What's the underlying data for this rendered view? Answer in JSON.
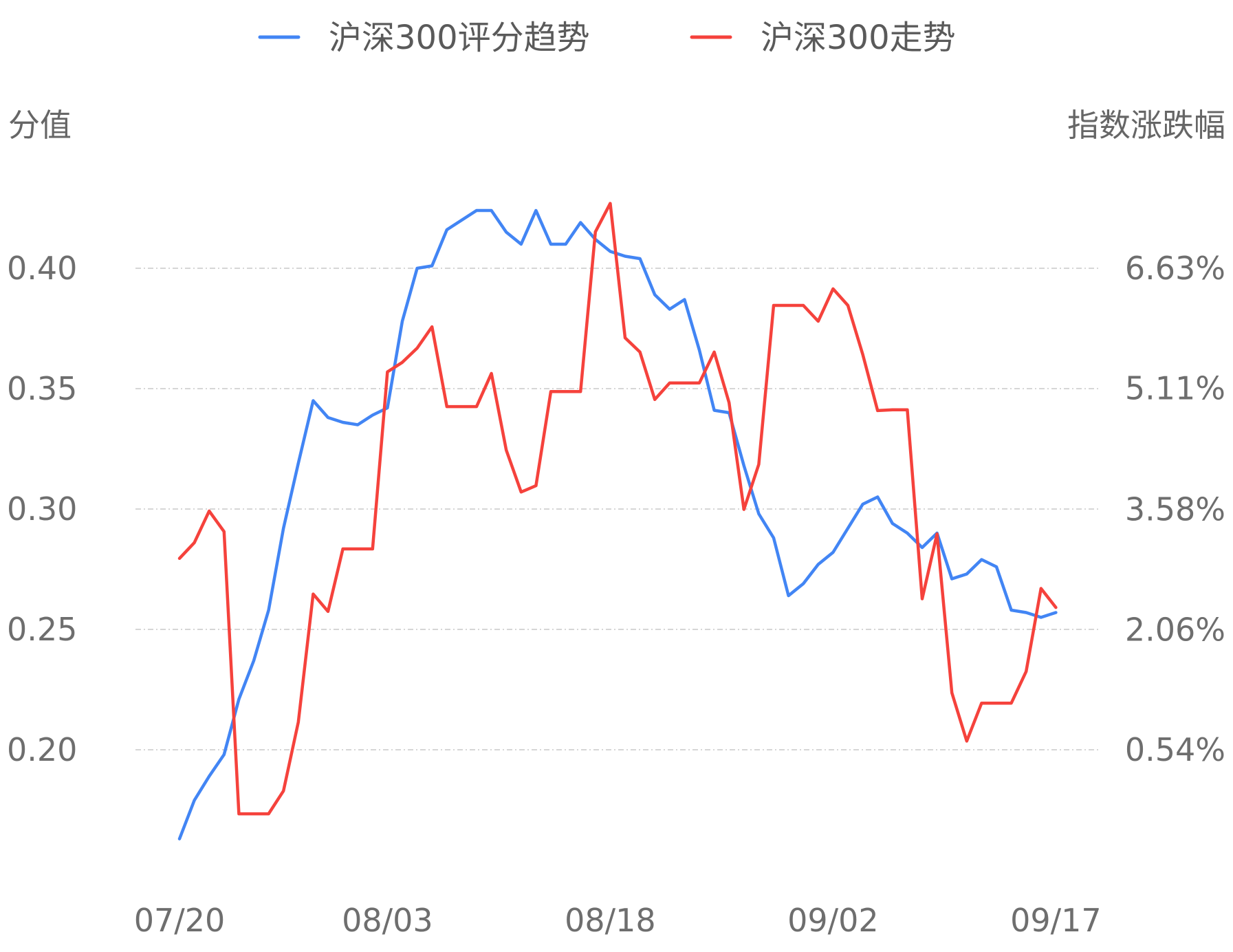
{
  "chart_data": {
    "type": "line",
    "title": "",
    "x_tick_labels": [
      "07/20",
      "08/03",
      "08/18",
      "09/02",
      "09/17"
    ],
    "x_tick_index": [
      0,
      14,
      29,
      44,
      59
    ],
    "y_left": {
      "label": "分值",
      "ticks": [
        0.2,
        0.25,
        0.3,
        0.35,
        0.4
      ],
      "tick_labels": [
        "0.20",
        "0.25",
        "0.30",
        "0.35",
        "0.40"
      ],
      "range": [
        0.17,
        0.43
      ]
    },
    "y_right": {
      "label": "指数涨跌幅",
      "ticks": [
        0.54,
        2.06,
        3.58,
        5.11,
        6.63
      ],
      "tick_labels": [
        "0.54%",
        "2.06%",
        "3.58%",
        "5.11%",
        "6.63%"
      ],
      "range": [
        -0.46,
        7.64
      ]
    },
    "grid": true,
    "legend_position": "top-center",
    "series": [
      {
        "name": "沪深300评分趋势",
        "axis": "left",
        "color": "#4285F4",
        "values": [
          0.163,
          0.179,
          0.189,
          0.198,
          0.221,
          0.237,
          0.258,
          0.292,
          0.319,
          0.345,
          0.338,
          0.336,
          0.335,
          0.339,
          0.342,
          0.378,
          0.4,
          0.401,
          0.416,
          0.42,
          0.424,
          0.424,
          0.415,
          0.41,
          0.424,
          0.41,
          0.41,
          0.419,
          0.412,
          0.407,
          0.405,
          0.404,
          0.389,
          0.383,
          0.387,
          0.366,
          0.341,
          0.34,
          0.318,
          0.298,
          0.288,
          0.264,
          0.269,
          0.277,
          0.282,
          0.292,
          0.302,
          0.305,
          0.294,
          0.29,
          0.284,
          0.29,
          0.271,
          0.273,
          0.279,
          0.276,
          0.258,
          0.257,
          0.255,
          0.257
        ]
      },
      {
        "name": "沪深300走势",
        "axis": "right",
        "color": "#F5423C",
        "values": [
          2.96,
          3.16,
          3.56,
          3.3,
          -0.27,
          -0.27,
          -0.27,
          0.02,
          0.89,
          2.51,
          2.29,
          3.08,
          3.08,
          3.08,
          5.32,
          5.44,
          5.62,
          5.89,
          4.88,
          4.88,
          4.88,
          5.3,
          4.33,
          3.8,
          3.88,
          5.07,
          5.07,
          5.07,
          7.09,
          7.45,
          5.75,
          5.57,
          4.97,
          5.18,
          5.18,
          5.18,
          5.57,
          4.93,
          3.58,
          4.15,
          6.16,
          6.16,
          6.16,
          5.96,
          6.37,
          6.16,
          5.54,
          4.83,
          4.84,
          4.84,
          2.45,
          3.27,
          1.26,
          0.65,
          1.13,
          1.13,
          1.13,
          1.53,
          2.58,
          2.34
        ]
      }
    ]
  }
}
